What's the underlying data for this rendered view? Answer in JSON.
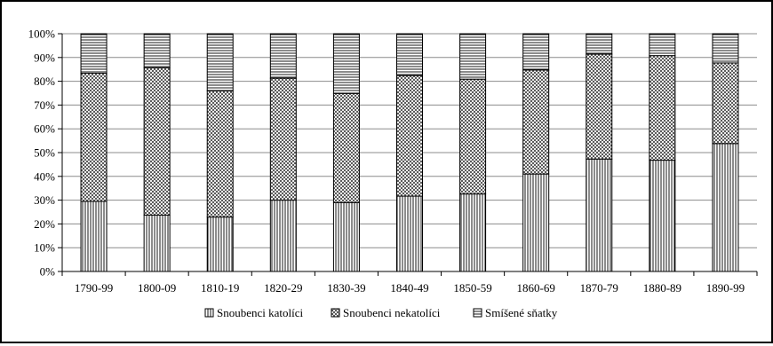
{
  "chart_data": {
    "type": "bar",
    "stacked": true,
    "percent": true,
    "categories": [
      "1790-99",
      "1800-09",
      "1810-19",
      "1820-29",
      "1830-39",
      "1840-49",
      "1850-59",
      "1860-69",
      "1870-79",
      "1880-89",
      "1890-99"
    ],
    "series": [
      {
        "name": "Snoubenci katolíci",
        "pattern": "vertical-lines",
        "values": [
          29.5,
          23.7,
          22.9,
          30.0,
          29.0,
          31.7,
          32.6,
          41.0,
          47.3,
          46.8,
          53.8
        ]
      },
      {
        "name": "Snoubenci nekatolíci",
        "pattern": "diagonal-crosshatch",
        "values": [
          53.9,
          62.0,
          53.1,
          51.3,
          45.9,
          50.7,
          48.3,
          43.7,
          44.1,
          44.0,
          33.9
        ]
      },
      {
        "name": "Smíšené sňatky",
        "pattern": "horizontal-lines",
        "values": [
          16.6,
          14.3,
          24.0,
          18.7,
          25.1,
          17.6,
          19.1,
          15.3,
          8.6,
          9.2,
          12.3
        ]
      }
    ],
    "y_ticks": [
      "0%",
      "10%",
      "20%",
      "30%",
      "40%",
      "50%",
      "60%",
      "70%",
      "80%",
      "90%",
      "100%"
    ],
    "ylim": [
      0,
      100
    ],
    "grid": true,
    "legend_position": "bottom",
    "colors": {
      "ink": "#000000",
      "grid": "#8c8c8c",
      "background": "#ffffff"
    }
  }
}
